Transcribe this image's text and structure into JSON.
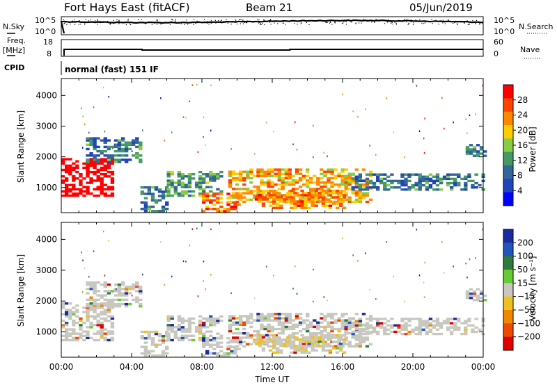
{
  "header": {
    "station": "Fort Hays East (fitACF)",
    "beam": "Beam 21",
    "date": "05/Jun/2019"
  },
  "status_panels": {
    "nsky_label": "N.Sky",
    "nsearch_label": "N.Search",
    "nsky_ticks": [
      "10^5",
      "10^0"
    ],
    "nsearch_ticks": [
      "10^5",
      "10^0"
    ],
    "freq_label": "Freq.",
    "freq_unit": "[MHz]",
    "freq_ticks": [
      "18",
      "8"
    ],
    "nave_label": "Nave",
    "nave_ticks": [
      "60",
      "0"
    ],
    "cpid_label": "CPID",
    "cpid_text": "normal (fast) 151 IF"
  },
  "chart_data": [
    {
      "type": "heatmap",
      "name": "power-panel",
      "ylabel": "Slant Range [km]",
      "yticks": [
        1000,
        2000,
        3000,
        4000
      ],
      "ylim": [
        180,
        4550
      ],
      "xticks": [
        "00:00",
        "04:00",
        "08:00",
        "12:00",
        "16:00",
        "20:00",
        "00:00"
      ],
      "colorbar": {
        "label": "Power [dB]",
        "ticks": [
          "28",
          "24",
          "20",
          "16",
          "12",
          "8",
          "4"
        ],
        "colors": [
          "#ff0000",
          "#ff4400",
          "#ff8800",
          "#ffcc00",
          "#88cc44",
          "#449966",
          "#336699",
          "#2244bb",
          "#0000ff"
        ]
      }
    },
    {
      "type": "heatmap",
      "name": "velocity-panel",
      "ylabel": "Slant Range [km]",
      "yticks": [
        1000,
        2000,
        3000,
        4000
      ],
      "ylim": [
        180,
        4550
      ],
      "xticks": [
        "00:00",
        "04:00",
        "08:00",
        "12:00",
        "16:00",
        "20:00",
        "00:00"
      ],
      "xlabel": "Time UT",
      "colorbar": {
        "label": "Velocity [m s⁻¹]",
        "ticks": [
          "200",
          "100",
          "50",
          "15",
          "−15",
          "−50",
          "−100",
          "−200"
        ],
        "colors": [
          "#1a2aa0",
          "#2255bb",
          "#2f7a3a",
          "#66cc33",
          "#c8c8c0",
          "#f0c020",
          "#f08800",
          "#f04a00",
          "#e00000"
        ]
      }
    }
  ]
}
